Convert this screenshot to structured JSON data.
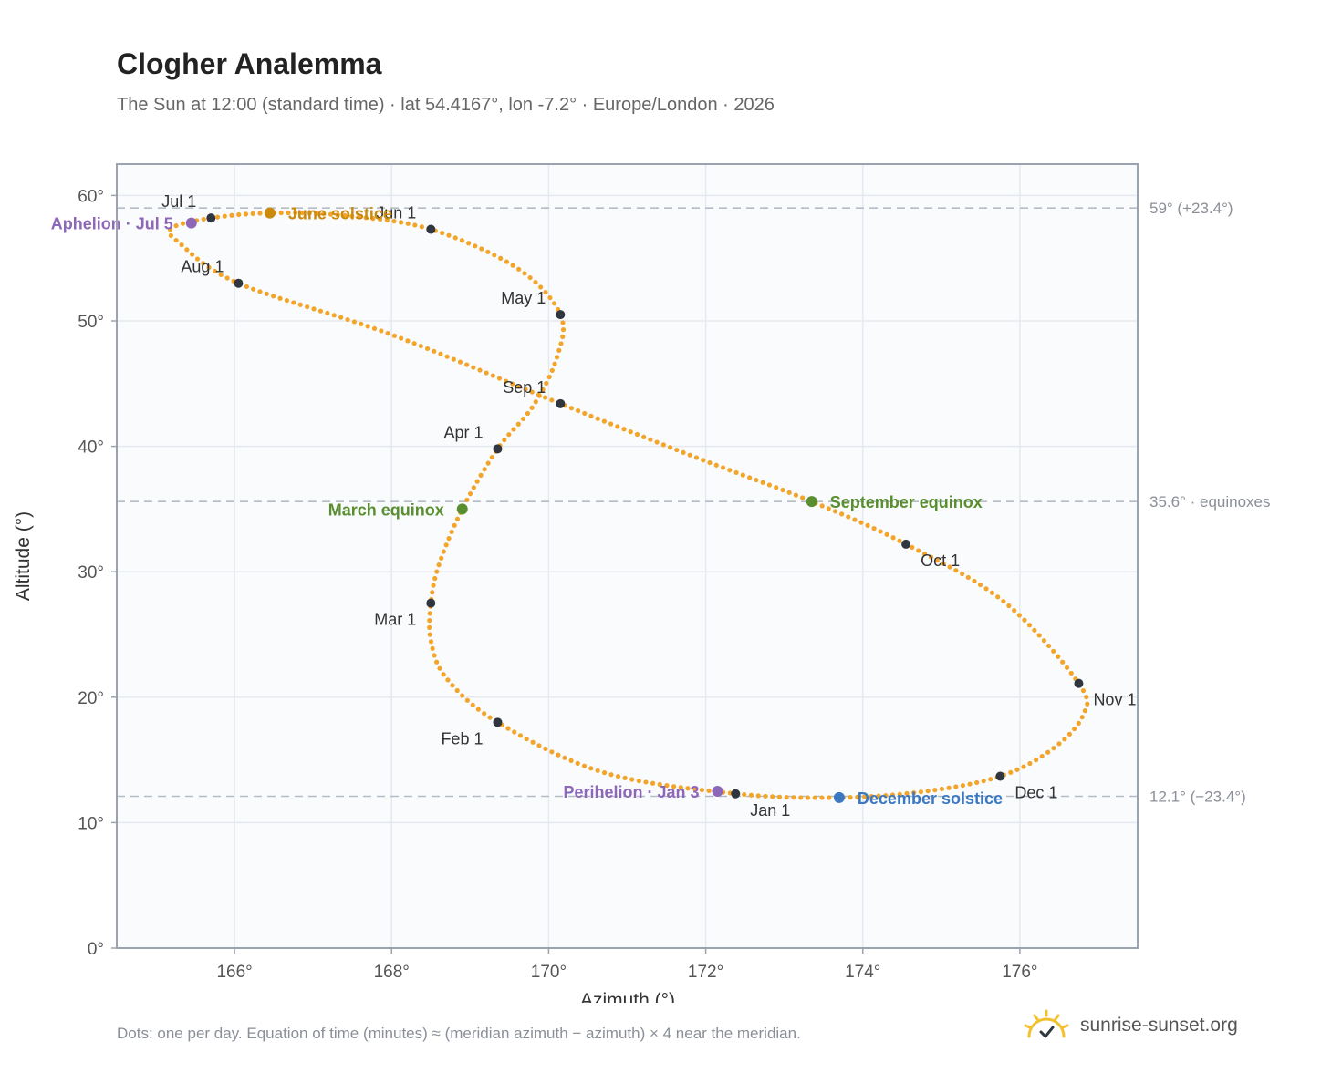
{
  "title": "Clogher Analemma",
  "subtitle": "The Sun at 12:00 (standard time) · lat 54.4167°, lon -7.2° · Europe/London · 2026",
  "footnote": "Dots: one per day. Equation of time (minutes) ≈ (meridian azimuth − azimuth) × 4 near the meridian.",
  "brand": {
    "name": "sunrise-sunset.org",
    "icon": "sun-check-icon"
  },
  "colors": {
    "path": "#f3a52a",
    "month_marker": "#2f3640",
    "solstice_june": "#c98a0d",
    "solstice_december": "#3b78c2",
    "equinox": "#5a8f2f",
    "apsis": "#8e68b8",
    "reference_line": "#b4bcc6",
    "grid": "#e6eaf0",
    "plot_bg": "#f9fbfd",
    "frame": "#9aa3ae"
  },
  "chart_data": {
    "type": "scatter",
    "xlabel": "Azimuth (°)",
    "ylabel": "Altitude (°)",
    "xlim": [
      164.5,
      177.5
    ],
    "ylim": [
      0,
      62.5
    ],
    "xticks": [
      166,
      168,
      170,
      172,
      174,
      176
    ],
    "xtick_labels": [
      "166°",
      "168°",
      "170°",
      "172°",
      "174°",
      "176°"
    ],
    "yticks": [
      0,
      10,
      20,
      30,
      40,
      50,
      60
    ],
    "ytick_labels": [
      "0°",
      "10°",
      "20°",
      "30°",
      "40°",
      "50°",
      "60°"
    ],
    "grid": true,
    "reference_lines": [
      {
        "y": 59.0,
        "label": "59° (+23.4°)"
      },
      {
        "y": 35.6,
        "label": "35.6° · equinoxes"
      },
      {
        "y": 12.1,
        "label": "12.1° (−23.4°)"
      }
    ],
    "path_keypoints": [
      {
        "x": 172.4,
        "y": 12.3
      },
      {
        "x": 170.7,
        "y": 14.0
      },
      {
        "x": 169.35,
        "y": 18.0
      },
      {
        "x": 168.7,
        "y": 21.5
      },
      {
        "x": 168.5,
        "y": 24.5
      },
      {
        "x": 168.5,
        "y": 27.5
      },
      {
        "x": 168.6,
        "y": 30.5
      },
      {
        "x": 168.9,
        "y": 35.0
      },
      {
        "x": 169.35,
        "y": 39.8
      },
      {
        "x": 169.8,
        "y": 43.2
      },
      {
        "x": 170.1,
        "y": 47.0
      },
      {
        "x": 170.15,
        "y": 50.5
      },
      {
        "x": 169.6,
        "y": 54.2
      },
      {
        "x": 168.5,
        "y": 57.3
      },
      {
        "x": 167.4,
        "y": 58.4
      },
      {
        "x": 166.45,
        "y": 58.6
      },
      {
        "x": 165.7,
        "y": 58.2
      },
      {
        "x": 165.2,
        "y": 57.4
      },
      {
        "x": 165.3,
        "y": 56.2
      },
      {
        "x": 166.05,
        "y": 53.0
      },
      {
        "x": 168.0,
        "y": 48.9
      },
      {
        "x": 170.15,
        "y": 43.4
      },
      {
        "x": 171.8,
        "y": 39.3
      },
      {
        "x": 173.35,
        "y": 35.6
      },
      {
        "x": 174.55,
        "y": 32.2
      },
      {
        "x": 175.8,
        "y": 27.6
      },
      {
        "x": 176.75,
        "y": 21.1
      },
      {
        "x": 176.8,
        "y": 18.5
      },
      {
        "x": 176.4,
        "y": 15.8
      },
      {
        "x": 175.75,
        "y": 13.7
      },
      {
        "x": 174.8,
        "y": 12.5
      },
      {
        "x": 173.7,
        "y": 12.0
      },
      {
        "x": 172.4,
        "y": 12.3
      }
    ],
    "month_markers": [
      {
        "label": "Jan 1",
        "x": 172.38,
        "y": 12.3,
        "anchor": "below"
      },
      {
        "label": "Feb 1",
        "x": 169.35,
        "y": 18.0,
        "anchor": "below-left"
      },
      {
        "label": "Mar 1",
        "x": 168.5,
        "y": 27.5,
        "anchor": "below-left"
      },
      {
        "label": "Apr 1",
        "x": 169.35,
        "y": 39.8,
        "anchor": "above-left"
      },
      {
        "label": "May 1",
        "x": 170.15,
        "y": 50.5,
        "anchor": "above-left"
      },
      {
        "label": "Jun 1",
        "x": 168.5,
        "y": 57.3,
        "anchor": "above-left"
      },
      {
        "label": "Jul 1",
        "x": 165.7,
        "y": 58.2,
        "anchor": "above-left"
      },
      {
        "label": "Aug 1",
        "x": 166.05,
        "y": 53.0,
        "anchor": "above-left"
      },
      {
        "label": "Sep 1",
        "x": 170.15,
        "y": 43.4,
        "anchor": "above-left"
      },
      {
        "label": "Oct 1",
        "x": 174.55,
        "y": 32.2,
        "anchor": "below-right"
      },
      {
        "label": "Nov 1",
        "x": 176.75,
        "y": 21.1,
        "anchor": "below-right"
      },
      {
        "label": "Dec 1",
        "x": 175.75,
        "y": 13.7,
        "anchor": "below-right"
      }
    ],
    "events": [
      {
        "label": "June solstice",
        "x": 166.45,
        "y": 58.6,
        "kind": "solstice_june",
        "anchor": "right"
      },
      {
        "label": "December solstice",
        "x": 173.7,
        "y": 12.0,
        "kind": "solstice_december",
        "anchor": "right"
      },
      {
        "label": "March equinox",
        "x": 168.9,
        "y": 35.0,
        "kind": "equinox",
        "anchor": "left"
      },
      {
        "label": "September equinox",
        "x": 173.35,
        "y": 35.6,
        "kind": "equinox",
        "anchor": "right"
      },
      {
        "label": "Aphelion · Jul 5",
        "x": 165.45,
        "y": 57.8,
        "kind": "apsis",
        "anchor": "left"
      },
      {
        "label": "Perihelion · Jan 3",
        "x": 172.15,
        "y": 12.5,
        "kind": "apsis",
        "anchor": "left"
      }
    ]
  }
}
